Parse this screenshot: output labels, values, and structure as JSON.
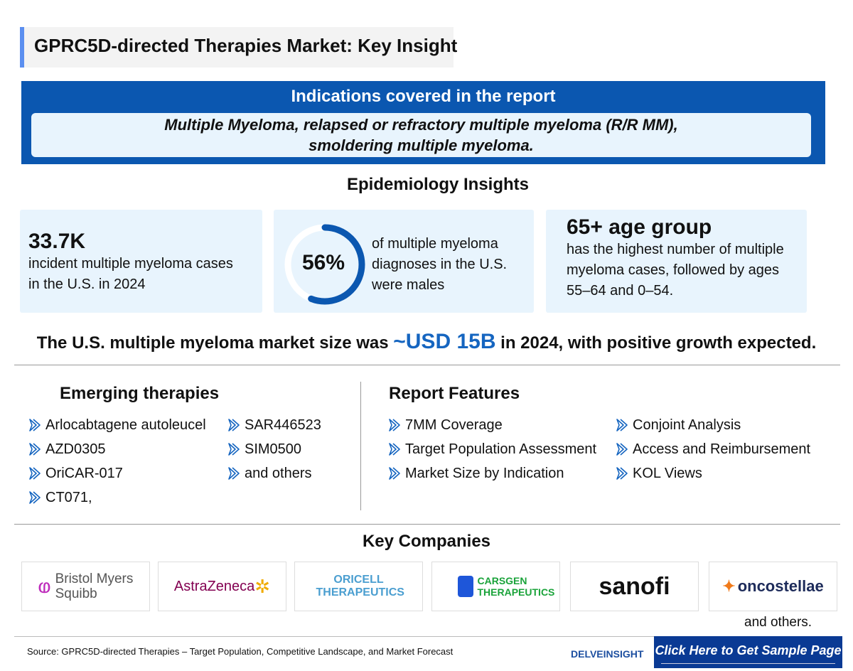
{
  "title": "GPRC5D-directed Therapies Market: Key Insight",
  "indications": {
    "heading": "Indications covered in the report",
    "line1": "Multiple Myeloma, relapsed or refractory multiple myeloma (R/R MM),",
    "line2": "smoldering multiple myeloma."
  },
  "epidemiology": {
    "heading": "Epidemiology Insights",
    "card1": {
      "value": "33.7K",
      "text1": "incident multiple myeloma cases",
      "text2": "in the U.S. in 2024"
    },
    "card2": {
      "value": "56%",
      "percent": 56,
      "text1": "of multiple myeloma",
      "text2": "diagnoses in the U.S.",
      "text3": "were males"
    },
    "card3": {
      "value": "65+ age group",
      "text1": "has the highest number of multiple",
      "text2": "myeloma cases, followed by ages",
      "text3": "55–64 and 0–54."
    }
  },
  "market": {
    "pre": "The U.S. multiple myeloma market size was ",
    "highlight": "~USD 15B",
    "post": " in 2024, with positive growth expected."
  },
  "emerging": {
    "heading": "Emerging therapies",
    "col1": [
      "Arlocabtagene autoleucel",
      "AZD0305",
      "OriCAR-017",
      "CT071,"
    ],
    "col2": [
      "SAR446523",
      "SIM0500",
      "and others"
    ]
  },
  "features": {
    "heading": "Report Features",
    "col1": [
      "7MM Coverage",
      "Target Population Assessment",
      "Market Size by Indication"
    ],
    "col2": [
      "Conjoint Analysis",
      "Access and Reimbursement",
      "KOL Views"
    ]
  },
  "companies": {
    "heading": "Key Companies",
    "logos": [
      "Bristol Myers Squibb",
      "AstraZeneca",
      "ORICELL THERAPEUTICS",
      "CARSGEN THERAPEUTICS",
      "sanofi",
      "oncostellae"
    ],
    "others": "and others."
  },
  "footer": {
    "source": "Source: GPRC5D-directed Therapies – Target Population, Competitive Landscape, and Market Forecast",
    "brand": "DELVEINSIGHT",
    "cta": "Click Here to Get Sample Page"
  },
  "colors": {
    "primary": "#0b57b0",
    "light": "#e8f4fd",
    "cta": "#0a3a94"
  }
}
